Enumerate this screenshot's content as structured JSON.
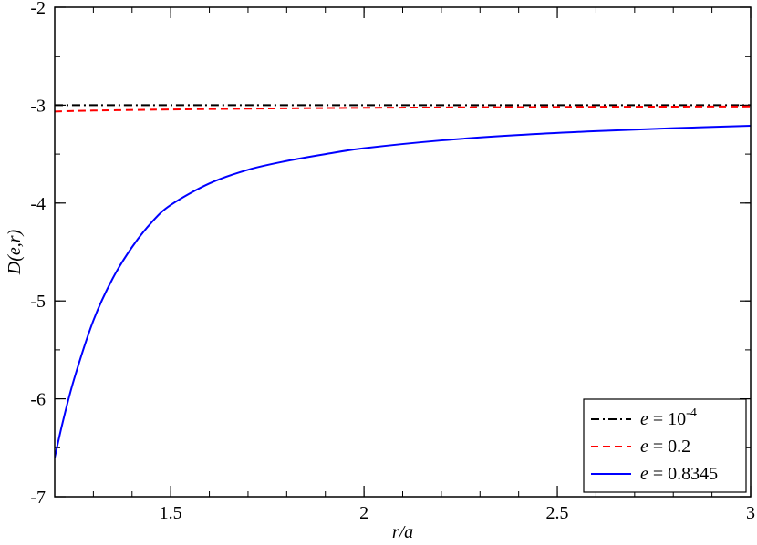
{
  "chart_data": {
    "type": "line",
    "xlabel": "r/a",
    "ylabel": "D(e,r)",
    "xlim": [
      1.2,
      3.0
    ],
    "ylim": [
      -7,
      -2
    ],
    "xticks": [
      1.5,
      2,
      2.5,
      3
    ],
    "xtick_labels": [
      "1.5",
      "2",
      "2.5",
      "3"
    ],
    "yticks": [
      -7,
      -6,
      -5,
      -4,
      -3,
      -2
    ],
    "ytick_labels": [
      "-7",
      "-6",
      "-5",
      "-4",
      "-3",
      "-2"
    ],
    "x_minor_step": 0.1,
    "y_minor_step": 0.5,
    "grid": false,
    "legend_position": "bottom-right",
    "series": [
      {
        "name": "e = 10^-4",
        "legend": {
          "var": "e",
          "eq": " = 10",
          "sup": "-4"
        },
        "color": "#000000",
        "style": "dashdot",
        "x": [
          1.2,
          1.5,
          2.0,
          2.5,
          3.0
        ],
        "y": [
          -3.0,
          -3.0,
          -3.0,
          -3.0,
          -3.0
        ]
      },
      {
        "name": "e = 0.2",
        "legend": {
          "var": "e",
          "eq": " = 0.2",
          "sup": ""
        },
        "color": "#ff0000",
        "style": "dashed",
        "x": [
          1.2,
          1.3,
          1.5,
          1.75,
          2.0,
          2.25,
          2.5,
          2.75,
          3.0
        ],
        "y": [
          -3.065,
          -3.055,
          -3.044,
          -3.034,
          -3.027,
          -3.022,
          -3.018,
          -3.015,
          -3.013
        ]
      },
      {
        "name": "e = 0.8345",
        "legend": {
          "var": "e",
          "eq": " = 0.8345",
          "sup": ""
        },
        "color": "#0000ff",
        "style": "solid",
        "x": [
          1.2,
          1.22,
          1.25,
          1.3,
          1.35,
          1.4,
          1.45,
          1.5,
          1.6,
          1.7,
          1.8,
          1.9,
          2.0,
          2.2,
          2.4,
          2.6,
          2.8,
          3.0
        ],
        "y": [
          -6.6,
          -6.25,
          -5.8,
          -5.2,
          -4.77,
          -4.45,
          -4.2,
          -4.02,
          -3.8,
          -3.66,
          -3.57,
          -3.5,
          -3.44,
          -3.36,
          -3.305,
          -3.265,
          -3.235,
          -3.21
        ]
      }
    ]
  }
}
